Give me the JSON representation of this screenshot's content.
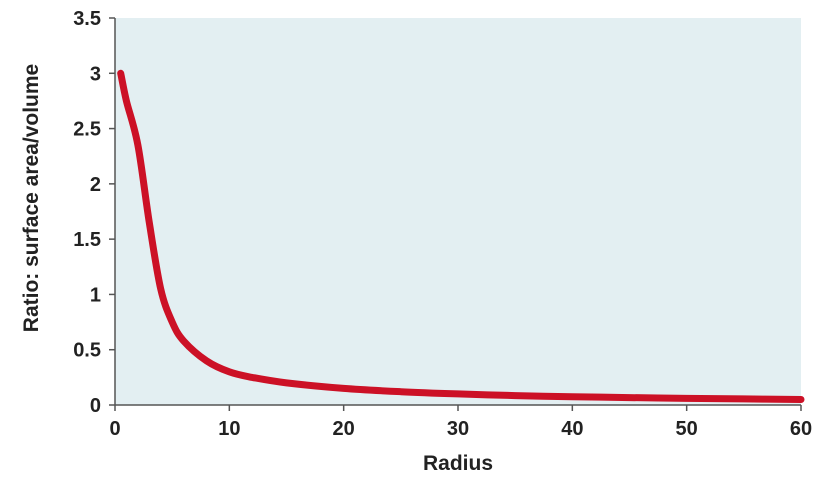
{
  "chart_data": {
    "type": "line",
    "title": "",
    "xlabel": "Radius",
    "ylabel": "Ratio: surface area/volume",
    "xlim": [
      0,
      60
    ],
    "ylim": [
      0,
      3.5
    ],
    "x_ticks": [
      "0",
      "10",
      "20",
      "30",
      "40",
      "50",
      "60"
    ],
    "y_ticks": [
      "0",
      "0.5",
      "1",
      "1.5",
      "2",
      "2.5",
      "3",
      "3.5"
    ],
    "grid": false,
    "legend": "none",
    "series": [
      {
        "color": "#cc1126",
        "points": [
          [
            0.5,
            3.0
          ],
          [
            1,
            2.75
          ],
          [
            2,
            2.35
          ],
          [
            3,
            1.65
          ],
          [
            4,
            1.05
          ],
          [
            5,
            0.75
          ],
          [
            6,
            0.58
          ],
          [
            8,
            0.4
          ],
          [
            10,
            0.3
          ],
          [
            12,
            0.25
          ],
          [
            15,
            0.2
          ],
          [
            20,
            0.15
          ],
          [
            25,
            0.12
          ],
          [
            30,
            0.1
          ],
          [
            35,
            0.085
          ],
          [
            40,
            0.075
          ],
          [
            45,
            0.067
          ],
          [
            50,
            0.06
          ],
          [
            55,
            0.055
          ],
          [
            60,
            0.05
          ]
        ]
      }
    ],
    "colors": {
      "plot_background": "#e3eff2",
      "axis": "#555555",
      "line": "#cc1126"
    }
  }
}
